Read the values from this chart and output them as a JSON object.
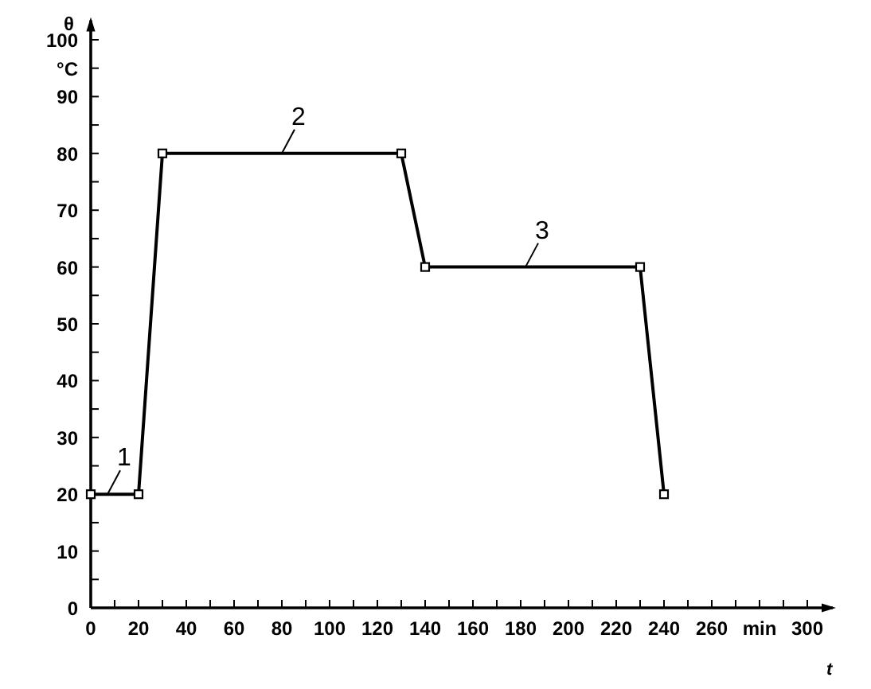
{
  "chart_data": {
    "type": "line",
    "xlabel": "t",
    "ylabel": "θ",
    "x": [
      0,
      20,
      30,
      130,
      140,
      230,
      240
    ],
    "values": [
      20,
      20,
      80,
      80,
      60,
      60,
      20
    ],
    "color": "#000000",
    "marker": "square",
    "line_style": "solid",
    "xlim": [
      0,
      312
    ],
    "ylim": [
      0,
      104
    ],
    "xticks": [
      0,
      {
        "value": 10,
        "label": null
      },
      20,
      {
        "value": 30,
        "label": null
      },
      40,
      {
        "value": 50,
        "label": null
      },
      60,
      {
        "value": 70,
        "label": null
      },
      80,
      {
        "value": 90,
        "label": null
      },
      100,
      {
        "value": 110,
        "label": null
      },
      120,
      {
        "value": 130,
        "label": null
      },
      140,
      {
        "value": 150,
        "label": null
      },
      160,
      {
        "value": 170,
        "label": null
      },
      180,
      {
        "value": 190,
        "label": null
      },
      200,
      {
        "value": 210,
        "label": null
      },
      220,
      {
        "value": 230,
        "label": null
      },
      240,
      {
        "value": 250,
        "label": null
      },
      260,
      {
        "value": 270,
        "label": null
      },
      {
        "value": 280,
        "label": "min"
      },
      {
        "value": 290,
        "label": null
      },
      300
    ],
    "yticks": [
      0,
      {
        "value": 5,
        "label": null
      },
      10,
      {
        "value": 15,
        "label": null
      },
      20,
      {
        "value": 25,
        "label": null
      },
      30,
      {
        "value": 35,
        "label": null
      },
      40,
      {
        "value": 45,
        "label": null
      },
      50,
      {
        "value": 55,
        "label": null
      },
      60,
      {
        "value": 65,
        "label": null
      },
      70,
      {
        "value": 75,
        "label": null
      },
      80,
      {
        "value": 85,
        "label": null
      },
      90,
      {
        "value": 95,
        "label": "°C"
      },
      100
    ],
    "annotations": [
      {
        "text": "1",
        "x": 7,
        "y": 20
      },
      {
        "text": "2",
        "x": 80,
        "y": 80
      },
      {
        "text": "3",
        "x": 182,
        "y": 60
      }
    ]
  }
}
